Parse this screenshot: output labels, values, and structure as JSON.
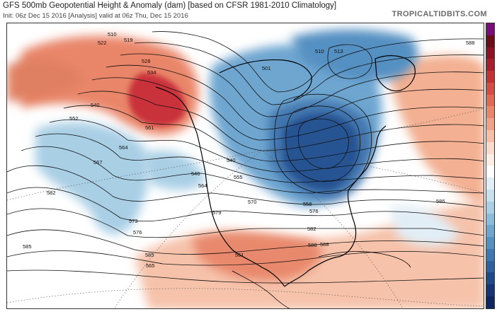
{
  "header": {
    "title": "GFS 500mb Geopotential Height & Anomaly (dam) [based on CFSR 1981-2010 Climatology]",
    "subtitle": "Init: 06z Dec 15 2016   [Analysis]   valid at 06z Thu, Dec 15 2016",
    "brand": "TROPICALTIDBITS.COM"
  },
  "colorbar": {
    "colors": [
      "#7a0e78",
      "#6a0e1a",
      "#8a1424",
      "#a71e2c",
      "#c23336",
      "#d24e45",
      "#de6a56",
      "#e8866c",
      "#f0a288",
      "#f6bfa6",
      "#fadacb",
      "#fdeee5",
      "#ffffff",
      "#e2eef6",
      "#c7e0ee",
      "#a9cfe5",
      "#8bbcdb",
      "#6ea6d0",
      "#5590c2",
      "#3f78b2",
      "#2e619f",
      "#20498a",
      "#173574",
      "#102660"
    ]
  },
  "contour_labels": [
    {
      "text": "510"
    },
    {
      "text": "519"
    },
    {
      "text": "522"
    },
    {
      "text": "528"
    },
    {
      "text": "534"
    },
    {
      "text": "540"
    },
    {
      "text": "552"
    },
    {
      "text": "561"
    },
    {
      "text": "564"
    },
    {
      "text": "567"
    },
    {
      "text": "573"
    },
    {
      "text": "576"
    },
    {
      "text": "579"
    },
    {
      "text": "582"
    },
    {
      "text": "585"
    },
    {
      "text": "588"
    },
    {
      "text": "501"
    },
    {
      "text": "510"
    },
    {
      "text": "513"
    },
    {
      "text": "540"
    },
    {
      "text": "546"
    },
    {
      "text": "555"
    },
    {
      "text": "558"
    },
    {
      "text": "564"
    },
    {
      "text": "570"
    },
    {
      "text": "576"
    },
    {
      "text": "582"
    },
    {
      "text": "585"
    },
    {
      "text": "588"
    },
    {
      "text": "586"
    },
    {
      "text": "588"
    },
    {
      "text": "565"
    },
    {
      "text": "561"
    }
  ]
}
